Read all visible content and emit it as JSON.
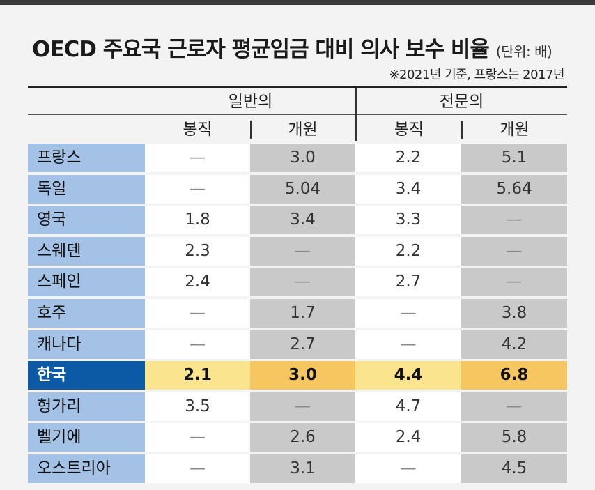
{
  "title": "OECD 주요국 근로자 평균임금 대비 의사 보수 비율",
  "unit": "(단위: 배)",
  "note": "※2021년 기준, 프랑스는 2017년",
  "chart_data": {
    "type": "table",
    "groups": [
      "일반의",
      "전문의"
    ],
    "columns": [
      "봉직",
      "개원",
      "봉직",
      "개원"
    ],
    "rows": [
      {
        "country": "프랑스",
        "values": [
          "—",
          "3.0",
          "2.2",
          "5.1"
        ]
      },
      {
        "country": "독일",
        "values": [
          "—",
          "5.04",
          "3.4",
          "5.64"
        ]
      },
      {
        "country": "영국",
        "values": [
          "1.8",
          "3.4",
          "3.3",
          "—"
        ]
      },
      {
        "country": "스웨덴",
        "values": [
          "2.3",
          "—",
          "2.2",
          "—"
        ]
      },
      {
        "country": "스페인",
        "values": [
          "2.4",
          "—",
          "2.7",
          "—"
        ]
      },
      {
        "country": "호주",
        "values": [
          "—",
          "1.7",
          "—",
          "3.8"
        ]
      },
      {
        "country": "캐나다",
        "values": [
          "—",
          "2.7",
          "—",
          "4.2"
        ]
      },
      {
        "country": "한국",
        "values": [
          "2.1",
          "3.0",
          "4.4",
          "6.8"
        ],
        "highlight": true
      },
      {
        "country": "헝가리",
        "values": [
          "3.5",
          "—",
          "4.7",
          "—"
        ]
      },
      {
        "country": "벨기에",
        "values": [
          "—",
          "2.6",
          "2.4",
          "5.8"
        ]
      },
      {
        "country": "오스트리아",
        "values": [
          "—",
          "3.1",
          "—",
          "4.5"
        ]
      }
    ]
  },
  "colors": {
    "country_bg": "#a4c2e6",
    "highlight_country_bg": "#0c5aa6",
    "highlight_light": "#fbe48e",
    "highlight_dark": "#f6c760",
    "gray_col": "#c9c9c9"
  }
}
